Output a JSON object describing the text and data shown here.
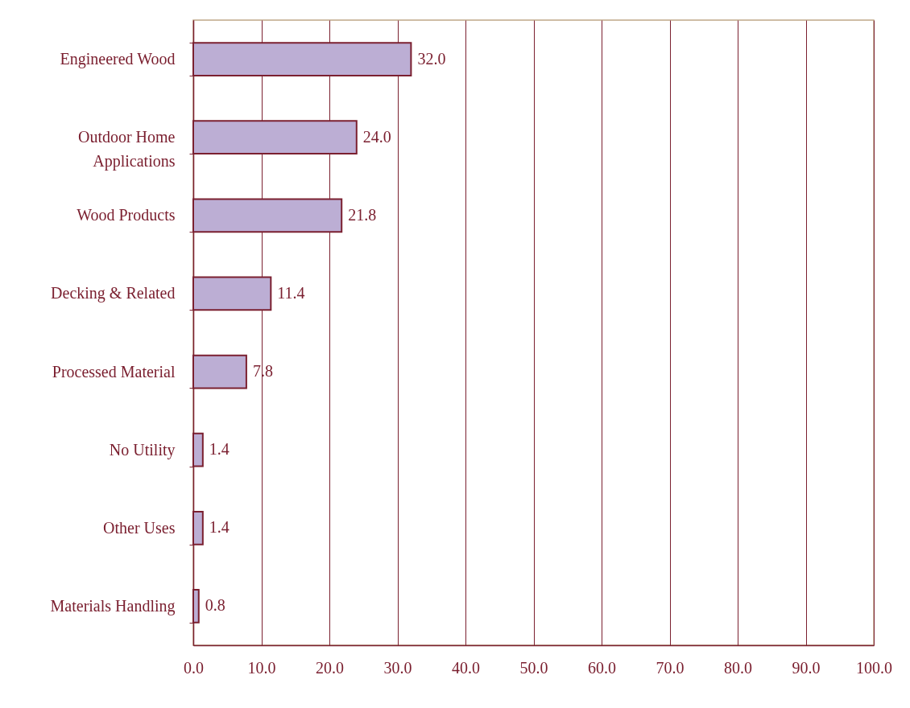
{
  "chart_data": {
    "type": "bar",
    "orientation": "horizontal",
    "categories": [
      "Engineered Wood",
      "Outdoor Home Applications",
      "Wood Products",
      "Decking & Related",
      "Processed Material",
      "No Utility",
      "Other Uses",
      "Materials Handling"
    ],
    "values": [
      32.0,
      24.0,
      21.8,
      11.4,
      7.8,
      1.4,
      1.4,
      0.8
    ],
    "value_labels": [
      "32.0",
      "24.0",
      "21.8",
      "11.4",
      "7.8",
      "1.4",
      "1.4",
      "0.8"
    ],
    "color": "#bcaed4",
    "xlim": [
      0,
      100
    ],
    "xticks": [
      {
        "value": 0,
        "label": "0.0"
      },
      {
        "value": 10,
        "label": "10.0"
      },
      {
        "value": 20,
        "label": "20.0"
      },
      {
        "value": 30,
        "label": "30.0"
      },
      {
        "value": 40,
        "label": "40.0"
      },
      {
        "value": 50,
        "label": "50.0"
      },
      {
        "value": 60,
        "label": "60.0"
      },
      {
        "value": 70,
        "label": "70.0"
      },
      {
        "value": 80,
        "label": "80.0"
      },
      {
        "value": 90,
        "label": "90.0"
      },
      {
        "value": 100,
        "label": "100.0"
      }
    ],
    "grid": "x"
  }
}
